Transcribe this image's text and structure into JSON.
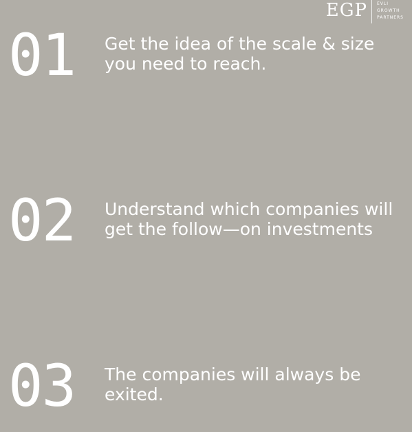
{
  "logo": {
    "mark": "EGP",
    "words": [
      "EVLI",
      "GROWTH",
      "PARTNERS"
    ]
  },
  "items": [
    {
      "number": "01",
      "text": "Get the idea of the scale & size you need to reach."
    },
    {
      "number": "02",
      "text": "Understand which companies will get the follow—on investments"
    },
    {
      "number": "03",
      "text": "The companies will always be exited."
    }
  ],
  "colors": {
    "background": "#b1aea7",
    "text": "#ffffff"
  }
}
